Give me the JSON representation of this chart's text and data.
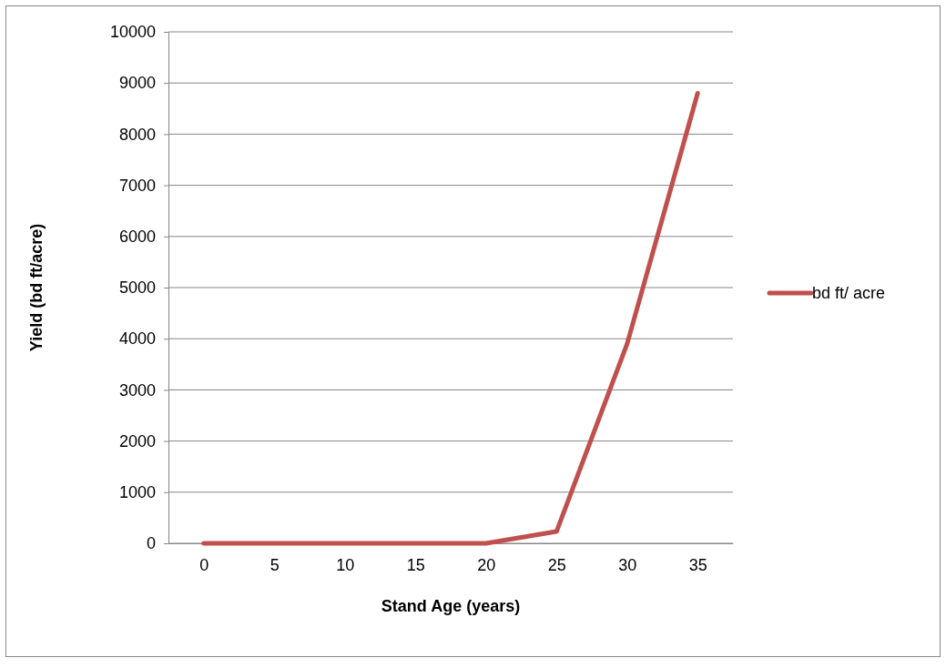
{
  "chart_data": {
    "type": "line",
    "xlabel": "Stand Age (years)",
    "ylabel": "Yield (bd ft/acre)",
    "categories": [
      "0",
      "5",
      "10",
      "15",
      "20",
      "25",
      "30",
      "35"
    ],
    "series": [
      {
        "name": "bd ft/ acre",
        "color": "#c0504d",
        "values": [
          0,
          0,
          0,
          0,
          0,
          230,
          3900,
          8800
        ]
      }
    ],
    "ylim": [
      0,
      10000
    ],
    "yticks": [
      0,
      1000,
      2000,
      3000,
      4000,
      5000,
      6000,
      7000,
      8000,
      9000,
      10000
    ],
    "grid": "y",
    "legend": "right"
  }
}
